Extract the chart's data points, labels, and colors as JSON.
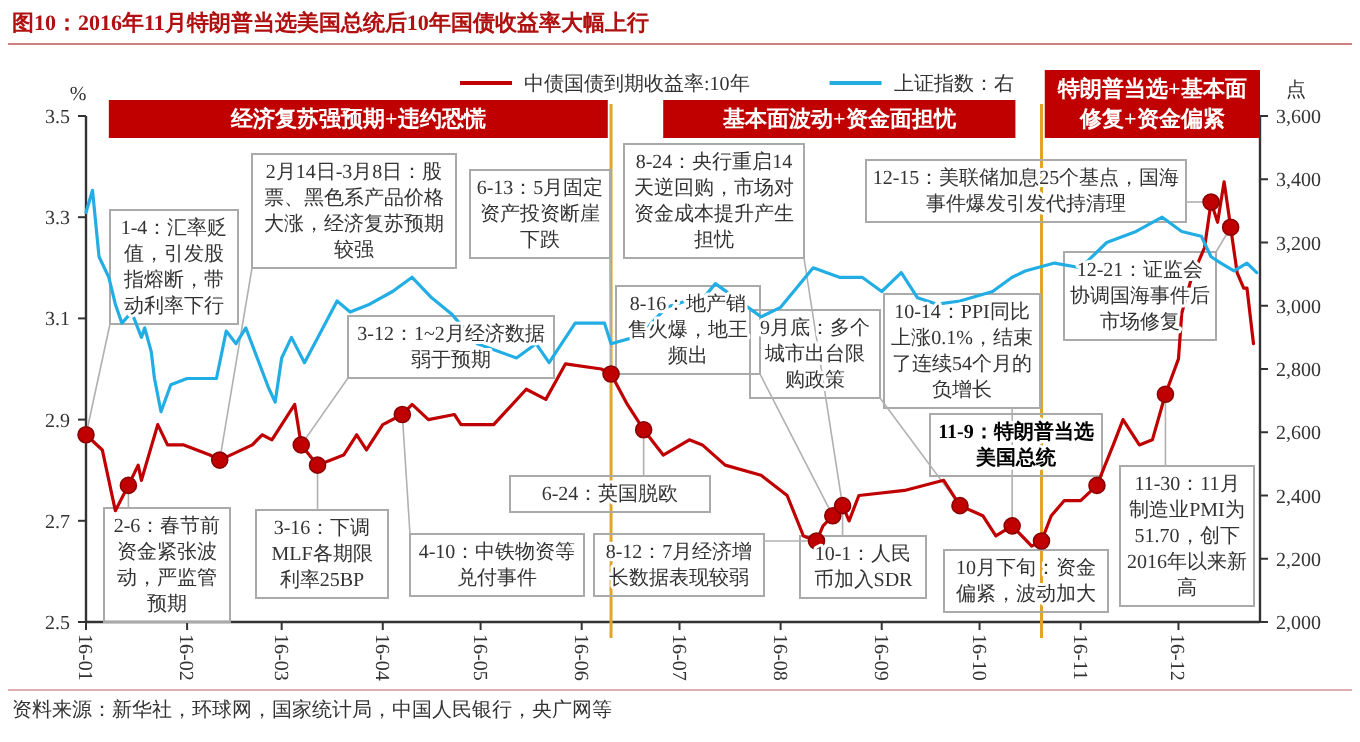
{
  "chart_data": {
    "type": "line",
    "title": "图10：2016年11月特朗普当选美国总统后10年国债收益率大幅上行",
    "ylabel": "%",
    "y2label": "点",
    "xlim": [
      "2016-01-01",
      "2016-12-26"
    ],
    "xticks": [
      {
        "value": "2016-01-01",
        "label": "16-01"
      },
      {
        "value": "2016-02-01",
        "label": "16-02"
      },
      {
        "value": "2016-03-01",
        "label": "16-03"
      },
      {
        "value": "2016-04-01",
        "label": "16-04"
      },
      {
        "value": "2016-05-01",
        "label": "16-05"
      },
      {
        "value": "2016-06-01",
        "label": "16-06"
      },
      {
        "value": "2016-07-01",
        "label": "16-07"
      },
      {
        "value": "2016-08-01",
        "label": "16-08"
      },
      {
        "value": "2016-09-01",
        "label": "16-09"
      },
      {
        "value": "2016-10-01",
        "label": "16-10"
      },
      {
        "value": "2016-11-01",
        "label": "16-11"
      },
      {
        "value": "2016-12-01",
        "label": "16-12"
      }
    ],
    "ylim": [
      2.5,
      3.5
    ],
    "yticks": [
      2.5,
      2.7,
      2.9,
      3.1,
      3.3,
      3.5
    ],
    "y2lim": [
      2000,
      3600
    ],
    "y2ticks": [
      {
        "value": 2000,
        "label": "2,000"
      },
      {
        "value": 2200,
        "label": "2,200"
      },
      {
        "value": 2400,
        "label": "2,400"
      },
      {
        "value": 2600,
        "label": "2,600"
      },
      {
        "value": 2800,
        "label": "2,800"
      },
      {
        "value": 3000,
        "label": "3,000"
      },
      {
        "value": 3200,
        "label": "3,200"
      },
      {
        "value": 3400,
        "label": "3,400"
      },
      {
        "value": 3600,
        "label": "3,600"
      }
    ],
    "grid": false,
    "legend": "top",
    "series": [
      {
        "name": "中债国债到期收益率:10年",
        "type": "line",
        "color": "#c00000",
        "x": [
          "2016-01-01",
          "2016-01-06",
          "2016-01-10",
          "2016-01-14",
          "2016-01-17",
          "2016-01-18",
          "2016-01-23",
          "2016-01-26",
          "2016-01-31",
          "2016-02-08",
          "2016-02-11",
          "2016-02-21",
          "2016-02-24",
          "2016-02-27",
          "2016-03-05",
          "2016-03-07",
          "2016-03-12",
          "2016-03-20",
          "2016-03-24",
          "2016-03-27",
          "2016-04-01",
          "2016-04-07",
          "2016-04-10",
          "2016-04-15",
          "2016-04-23",
          "2016-04-25",
          "2016-05-05",
          "2016-05-15",
          "2016-05-21",
          "2016-05-27",
          "2016-06-07",
          "2016-06-10",
          "2016-06-15",
          "2016-06-20",
          "2016-06-26",
          "2016-07-04",
          "2016-07-08",
          "2016-07-15",
          "2016-07-26",
          "2016-08-03",
          "2016-08-08",
          "2016-08-12",
          "2016-08-14",
          "2016-08-17",
          "2016-08-20",
          "2016-08-22",
          "2016-08-25",
          "2016-09-08",
          "2016-09-20",
          "2016-09-25",
          "2016-10-02",
          "2016-10-06",
          "2016-10-11",
          "2016-10-17",
          "2016-10-20",
          "2016-10-23",
          "2016-10-27",
          "2016-11-01",
          "2016-11-06",
          "2016-11-11",
          "2016-11-14",
          "2016-11-19",
          "2016-11-23",
          "2016-11-27",
          "2016-12-01",
          "2016-12-02",
          "2016-12-05",
          "2016-12-09",
          "2016-12-11",
          "2016-12-13",
          "2016-12-15",
          "2016-12-17",
          "2016-12-19",
          "2016-12-21",
          "2016-12-22",
          "2016-12-24"
        ],
        "values": [
          2.87,
          2.84,
          2.72,
          2.77,
          2.81,
          2.78,
          2.89,
          2.85,
          2.85,
          2.83,
          2.82,
          2.85,
          2.87,
          2.86,
          2.93,
          2.85,
          2.81,
          2.83,
          2.87,
          2.84,
          2.89,
          2.91,
          2.93,
          2.9,
          2.91,
          2.89,
          2.89,
          2.96,
          2.94,
          3.01,
          3.0,
          2.99,
          2.93,
          2.88,
          2.83,
          2.86,
          2.85,
          2.81,
          2.79,
          2.75,
          2.67,
          2.66,
          2.69,
          2.71,
          2.73,
          2.7,
          2.75,
          2.76,
          2.78,
          2.73,
          2.71,
          2.67,
          2.69,
          2.65,
          2.66,
          2.71,
          2.74,
          2.74,
          2.77,
          2.85,
          2.9,
          2.85,
          2.86,
          2.95,
          3.02,
          3.11,
          3.18,
          3.24,
          3.33,
          3.29,
          3.37,
          3.28,
          3.19,
          3.16,
          3.16,
          3.05
        ]
      },
      {
        "name": "上证指数：右",
        "type": "line",
        "axis": "y2",
        "color": "#22aee4",
        "x": [
          "2016-01-01",
          "2016-01-03",
          "2016-01-05",
          "2016-01-08",
          "2016-01-10",
          "2016-01-12",
          "2016-01-15",
          "2016-01-18",
          "2016-01-19",
          "2016-01-21",
          "2016-01-22",
          "2016-01-24",
          "2016-01-27",
          "2016-02-01",
          "2016-02-10",
          "2016-02-13",
          "2016-02-16",
          "2016-02-19",
          "2016-02-26",
          "2016-02-28",
          "2016-03-01",
          "2016-03-04",
          "2016-03-08",
          "2016-03-18",
          "2016-03-22",
          "2016-03-28",
          "2016-04-04",
          "2016-04-10",
          "2016-04-16",
          "2016-04-22",
          "2016-04-30",
          "2016-05-12",
          "2016-05-18",
          "2016-05-22",
          "2016-05-30",
          "2016-06-08",
          "2016-06-10",
          "2016-06-17",
          "2016-06-21",
          "2016-06-27",
          "2016-07-03",
          "2016-07-06",
          "2016-07-12",
          "2016-07-18",
          "2016-07-22",
          "2016-07-26",
          "2016-08-01",
          "2016-08-11",
          "2016-08-19",
          "2016-08-26",
          "2016-09-01",
          "2016-09-07",
          "2016-09-12",
          "2016-09-18",
          "2016-09-25",
          "2016-10-05",
          "2016-10-11",
          "2016-10-15",
          "2016-10-24",
          "2016-11-01",
          "2016-11-09",
          "2016-11-18",
          "2016-11-26",
          "2016-12-02",
          "2016-12-08",
          "2016-12-11",
          "2016-12-14",
          "2016-12-18",
          "2016-12-22",
          "2016-12-25"
        ],
        "values": [
          3295,
          3365,
          3155,
          3090,
          3005,
          2945,
          2980,
          2900,
          2930,
          2855,
          2770,
          2665,
          2750,
          2770,
          2770,
          2920,
          2880,
          2930,
          2740,
          2695,
          2835,
          2900,
          2820,
          3015,
          2980,
          3005,
          3045,
          3090,
          3025,
          2975,
          2880,
          2835,
          2880,
          2820,
          2945,
          2945,
          2880,
          2900,
          2930,
          2995,
          3015,
          2995,
          3070,
          3025,
          2995,
          2965,
          2995,
          3120,
          3090,
          3090,
          3045,
          3105,
          3025,
          3005,
          3015,
          3045,
          3090,
          3110,
          3135,
          3120,
          3200,
          3235,
          3280,
          3235,
          3220,
          3155,
          3135,
          3110,
          3135,
          3105
        ]
      },
      {
        "type": "scatter",
        "color": "#c00000",
        "marker": "circle",
        "x": [
          "2016-01-01",
          "2016-01-14",
          "2016-02-11",
          "2016-03-07",
          "2016-03-12",
          "2016-04-07",
          "2016-06-10",
          "2016-06-20",
          "2016-08-12",
          "2016-08-17",
          "2016-08-20",
          "2016-09-25",
          "2016-10-11",
          "2016-10-20",
          "2016-11-06",
          "2016-11-27",
          "2016-12-11",
          "2016-12-17"
        ],
        "values": [
          2.87,
          2.77,
          2.82,
          2.85,
          2.81,
          2.91,
          2.99,
          2.88,
          2.66,
          2.71,
          2.73,
          2.73,
          2.69,
          2.66,
          2.77,
          2.95,
          3.33,
          3.28
        ]
      }
    ],
    "ref_lines": [
      {
        "axis": "x",
        "value": "2016-06-10",
        "color": "#e0a526"
      },
      {
        "axis": "x",
        "value": "2016-10-20",
        "color": "#e0a526"
      }
    ],
    "bands": [
      {
        "axis": "x",
        "from": "2016-01-08",
        "to": "2016-06-09",
        "label": "经济复苏强预期+违约恐慌",
        "color": "#c00000"
      },
      {
        "axis": "x",
        "from": "2016-06-26",
        "to": "2016-10-12",
        "label": "基本面波动+资金面担忧",
        "color": "#c00000"
      },
      {
        "axis": "x",
        "from": "2016-10-21",
        "to": "2016-12-26",
        "label": "特朗普当选+基本面修复+资金偏紧",
        "color": "#c00000"
      }
    ],
    "annotations": [
      {
        "text": "1-4：汇率贬值，引发股指熔断，带动利率下行",
        "x": "2016-01-01",
        "y": 2.87
      },
      {
        "text": "2月14日-3月8日：股票、黑色系产品价格大涨，经济复苏预期较强",
        "x": "2016-02-11",
        "y": 2.82
      },
      {
        "text": "6-13：5月固定资产投资断崖下跌",
        "x": "2016-06-10",
        "y": 2.99
      },
      {
        "text": "3-12：1~2月经济数据弱于预期",
        "x": "2016-03-07",
        "y": 2.85
      },
      {
        "text": "2-6：春节前资金紧张波动，严监管预期",
        "x": "2016-01-14",
        "y": 2.77
      },
      {
        "text": "3-16：下调MLF各期限利率25BP",
        "x": "2016-03-12",
        "y": 2.81
      },
      {
        "text": "4-10：中铁物资等兑付事件",
        "x": "2016-04-07",
        "y": 2.91
      },
      {
        "text": "6-24：英国脱欧",
        "x": "2016-06-20",
        "y": 2.88
      },
      {
        "text": "8-12：7月经济增长数据表现较弱",
        "x": "2016-08-12",
        "y": 2.66
      },
      {
        "text": "8-24：央行重启14天逆回购，市场对资金成本提升产生担忧",
        "x": "2016-08-20",
        "y": 2.73
      },
      {
        "text": "8-16：地产销售火爆，地王频出",
        "x": "2016-08-17",
        "y": 2.71
      },
      {
        "text": "9月底：多个城市出台限购政策",
        "x": "2016-09-25",
        "y": 2.73
      },
      {
        "text": "12-15：美联储加息25个基点，国海事件爆发引发代持清理",
        "x": "2016-12-11",
        "y": 3.33
      },
      {
        "text": "10-14：PPI同比上涨0.1%，结束了连续54个月的负增长",
        "x": "2016-10-11",
        "y": 2.69
      },
      {
        "text": "12-21：证监会协调国海事件后市场修复",
        "x": "2016-12-17",
        "y": 3.28
      },
      {
        "text": "11-9：特朗普当选美国总统",
        "x": "2016-11-06",
        "y": 2.77
      },
      {
        "text": "10-1：人民币加入SDR",
        "x": "2016-08-20",
        "y": 2.73
      },
      {
        "text": "10月下旬：资金偏紧，波动加大",
        "x": "2016-10-20",
        "y": 2.66
      },
      {
        "text": "11-30：11月制造业PMI为51.70，创下2016年以来新高",
        "x": "2016-11-27",
        "y": 2.95
      },
      "资料来源：新华社，环球网，国家统计局，中国人民银行，央广网等"
    ]
  }
}
